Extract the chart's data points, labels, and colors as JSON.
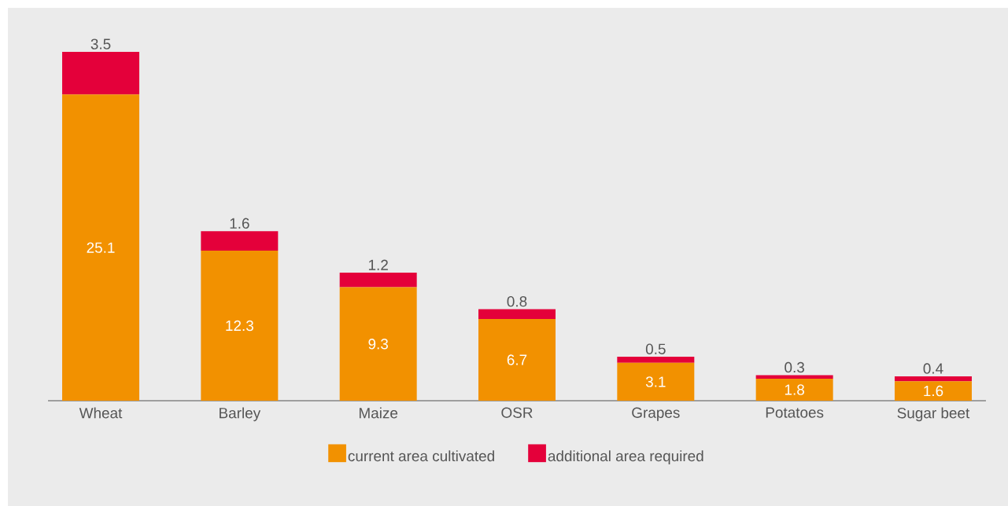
{
  "chart_data": {
    "type": "bar",
    "stacked": true,
    "data_labels": true,
    "legend": "bottom",
    "categories": [
      "Wheat",
      "Barley",
      "Maize",
      "OSR",
      "Grapes",
      "Potatoes",
      "Sugar beet"
    ],
    "series": [
      {
        "name": "current area cultivated",
        "color": "#f29100",
        "values": [
          25.1,
          12.3,
          9.3,
          6.7,
          3.1,
          1.8,
          1.6
        ]
      },
      {
        "name": "additional area required",
        "color": "#e4003a",
        "values": [
          3.5,
          1.6,
          1.2,
          0.8,
          0.5,
          0.3,
          0.4
        ]
      }
    ]
  }
}
